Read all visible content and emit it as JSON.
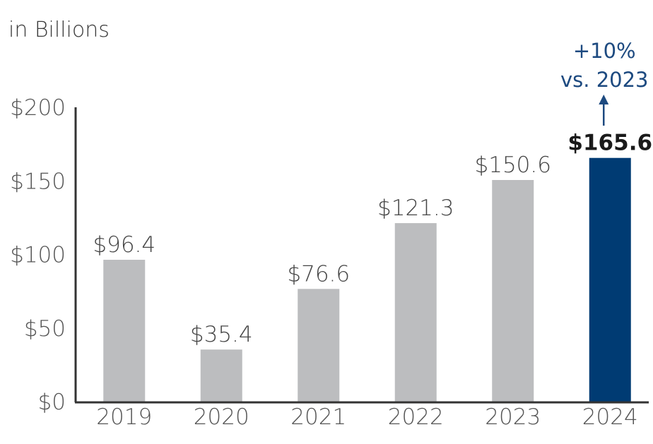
{
  "chart_data": {
    "type": "bar",
    "unit_label": "in Billions",
    "categories": [
      "2019",
      "2020",
      "2021",
      "2022",
      "2023",
      "2024"
    ],
    "values": [
      96.4,
      35.4,
      76.6,
      121.3,
      150.6,
      165.6
    ],
    "value_labels": [
      "$96.4",
      "$35.4",
      "$76.6",
      "$121.3",
      "$150.6",
      "$165.6"
    ],
    "highlight_index": 5,
    "ylim": [
      0,
      200
    ],
    "yticks": [
      0,
      50,
      100,
      150,
      200
    ],
    "ytick_labels": [
      "$0",
      "$50",
      "$100",
      "$150",
      "$200"
    ],
    "grid": false,
    "annotation": {
      "line1": "+10%",
      "line2": "vs. 2023",
      "target_category": "2024"
    },
    "colors": {
      "bar": "#bcbdbf",
      "highlight_bar": "#003b73",
      "axis": "#333333",
      "annotation": "#1d4a80"
    }
  }
}
